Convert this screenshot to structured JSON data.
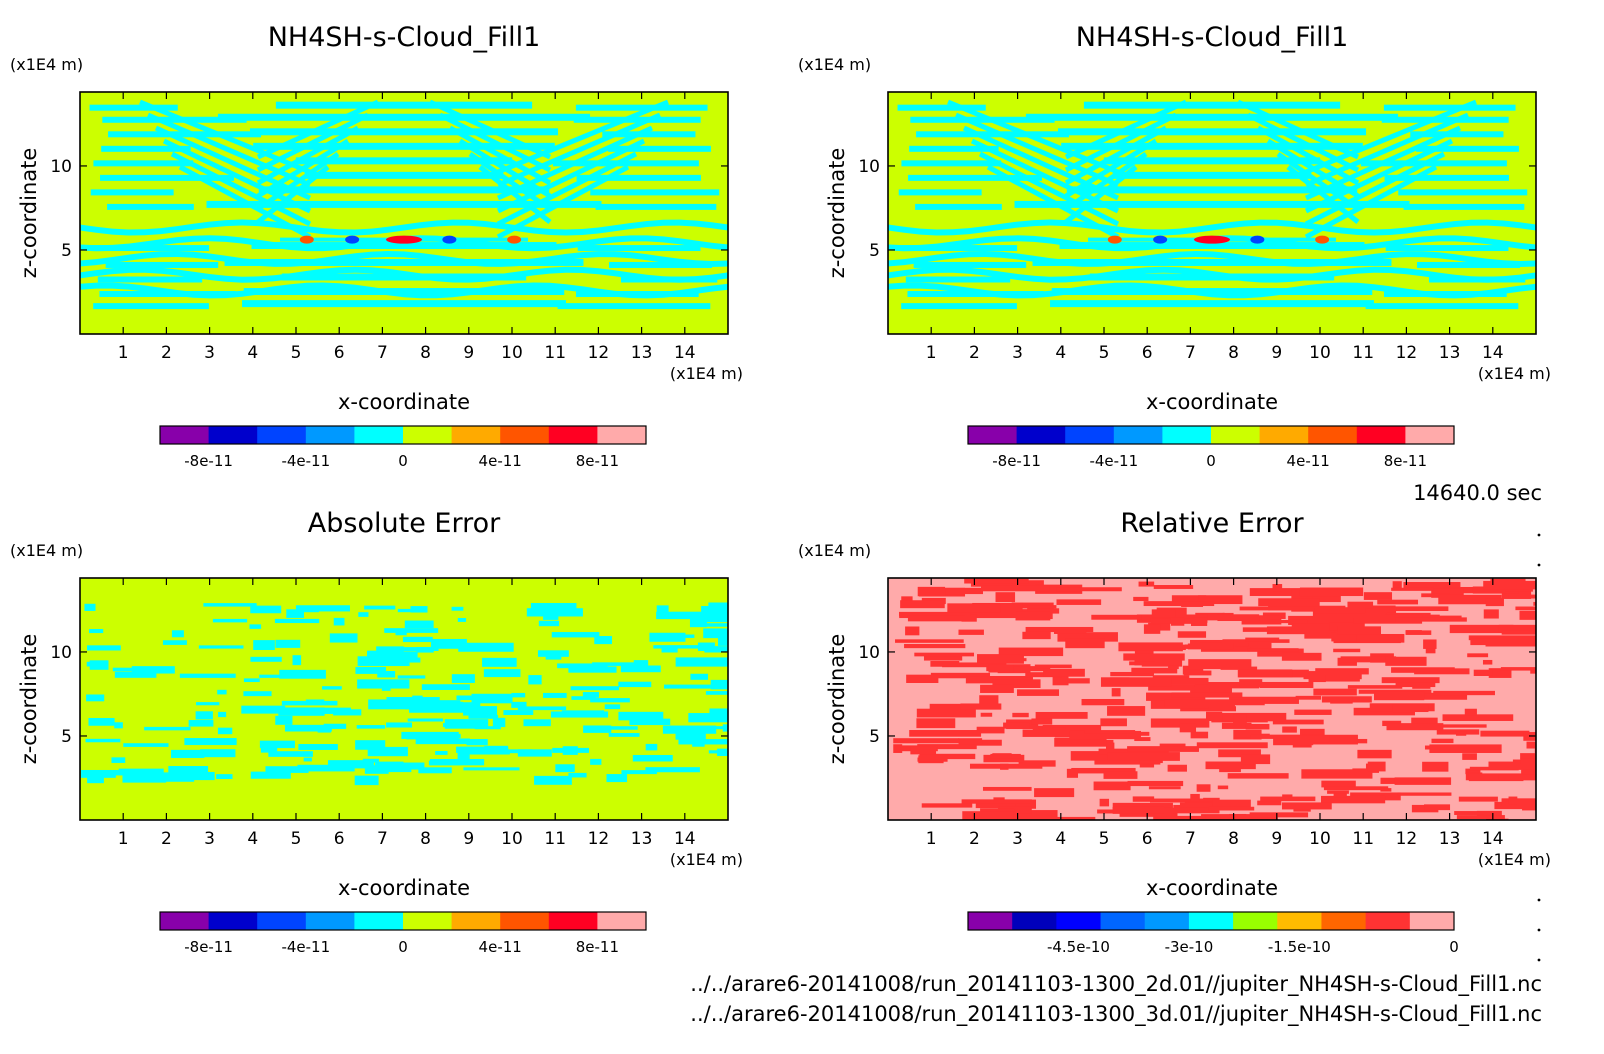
{
  "chart_data": [
    {
      "type": "contour",
      "title": "NH4SH-s-Cloud_Fill1",
      "xlabel": "x-coordinate",
      "ylabel": "z-coordinate",
      "x_unit": "(x1E4 m)",
      "y_unit": "(x1E4 m)",
      "xlim": [
        0,
        15
      ],
      "ylim": [
        0,
        14.4
      ],
      "x_ticks": [
        1,
        2,
        3,
        4,
        5,
        6,
        7,
        8,
        9,
        10,
        11,
        12,
        13,
        14
      ],
      "y_ticks": [
        5,
        10
      ],
      "background_level": "0 to 1e-11 (yellow-green)",
      "colorbar": {
        "levels": [
          -1e-10,
          -8e-11,
          -6e-11,
          -4e-11,
          -2e-11,
          0,
          2e-11,
          4e-11,
          6e-11,
          8e-11,
          1e-10
        ],
        "tick_labels": [
          "-8e-11",
          "-4e-11",
          "0",
          "4e-11",
          "8e-11"
        ],
        "tick_values": [
          -8e-11,
          -4e-11,
          0,
          4e-11,
          8e-11
        ]
      }
    },
    {
      "type": "contour",
      "title": "NH4SH-s-Cloud_Fill1",
      "xlabel": "x-coordinate",
      "ylabel": "z-coordinate",
      "x_unit": "(x1E4 m)",
      "y_unit": "(x1E4 m)",
      "xlim": [
        0,
        15
      ],
      "ylim": [
        0,
        14.4
      ],
      "x_ticks": [
        1,
        2,
        3,
        4,
        5,
        6,
        7,
        8,
        9,
        10,
        11,
        12,
        13,
        14
      ],
      "y_ticks": [
        5,
        10
      ],
      "colorbar": {
        "levels": [
          -1e-10,
          -8e-11,
          -6e-11,
          -4e-11,
          -2e-11,
          0,
          2e-11,
          4e-11,
          6e-11,
          8e-11,
          1e-10
        ],
        "tick_labels": [
          "-8e-11",
          "-4e-11",
          "0",
          "4e-11",
          "8e-11"
        ],
        "tick_values": [
          -8e-11,
          -4e-11,
          0,
          4e-11,
          8e-11
        ]
      }
    },
    {
      "type": "contour",
      "title": "Absolute Error",
      "xlabel": "x-coordinate",
      "ylabel": "z-coordinate",
      "x_unit": "(x1E4 m)",
      "y_unit": "(x1E4 m)",
      "xlim": [
        0,
        15
      ],
      "ylim": [
        0,
        14.4
      ],
      "x_ticks": [
        1,
        2,
        3,
        4,
        5,
        6,
        7,
        8,
        9,
        10,
        11,
        12,
        13,
        14
      ],
      "y_ticks": [
        5,
        10
      ],
      "colorbar": {
        "levels": [
          -1e-10,
          -8e-11,
          -6e-11,
          -4e-11,
          -2e-11,
          0,
          2e-11,
          4e-11,
          6e-11,
          8e-11,
          1e-10
        ],
        "tick_labels": [
          "-8e-11",
          "-4e-11",
          "0",
          "4e-11",
          "8e-11"
        ],
        "tick_values": [
          -8e-11,
          -4e-11,
          0,
          4e-11,
          8e-11
        ]
      }
    },
    {
      "type": "contour",
      "title": "Relative Error",
      "xlabel": "x-coordinate",
      "ylabel": "z-coordinate",
      "x_unit": "(x1E4 m)",
      "y_unit": "(x1E4 m)",
      "xlim": [
        0,
        15
      ],
      "ylim": [
        0,
        14.4
      ],
      "x_ticks": [
        1,
        2,
        3,
        4,
        5,
        6,
        7,
        8,
        9,
        10,
        11,
        12,
        13,
        14
      ],
      "y_ticks": [
        5,
        10
      ],
      "colorbar": {
        "levels": [
          -6e-10,
          -5.4e-10,
          -4.8e-10,
          -4.2e-10,
          -3.6e-10,
          -3e-10,
          -2.4e-10,
          -1.8e-10,
          -1.2e-10,
          -6e-11,
          -1e-11,
          0
        ],
        "tick_labels": [
          "-4.5e-10",
          "-3e-10",
          "-1.5e-10",
          "0"
        ],
        "tick_values": [
          -4.5e-10,
          -3e-10,
          -1.5e-10,
          0
        ]
      }
    }
  ],
  "time_label": "14640.0 sec",
  "file_paths": [
    "../../arare6-20141008/run_20141103-1300_2d.01//jupiter_NH4SH-s-Cloud_Fill1.nc",
    "../../arare6-20141008/run_20141103-1300_3d.01//jupiter_NH4SH-s-Cloud_Fill1.nc"
  ],
  "colors": {
    "background_field": "#ccff00",
    "cyan_band": "#00ffff",
    "rel_background": "#ffaaaa",
    "rel_band": "#ff3333",
    "palette10": [
      "#8800aa",
      "#0000cc",
      "#0044ff",
      "#0099ff",
      "#00ffff",
      "#ccff00",
      "#ffaa00",
      "#ff5500",
      "#ff0022",
      "#ffaaaa"
    ],
    "palette11": [
      "#8800aa",
      "#0000bb",
      "#0000ff",
      "#0066ff",
      "#0099ff",
      "#00ffff",
      "#99ff00",
      "#ffbb00",
      "#ff6600",
      "#ff3333",
      "#ffaaaa"
    ]
  }
}
